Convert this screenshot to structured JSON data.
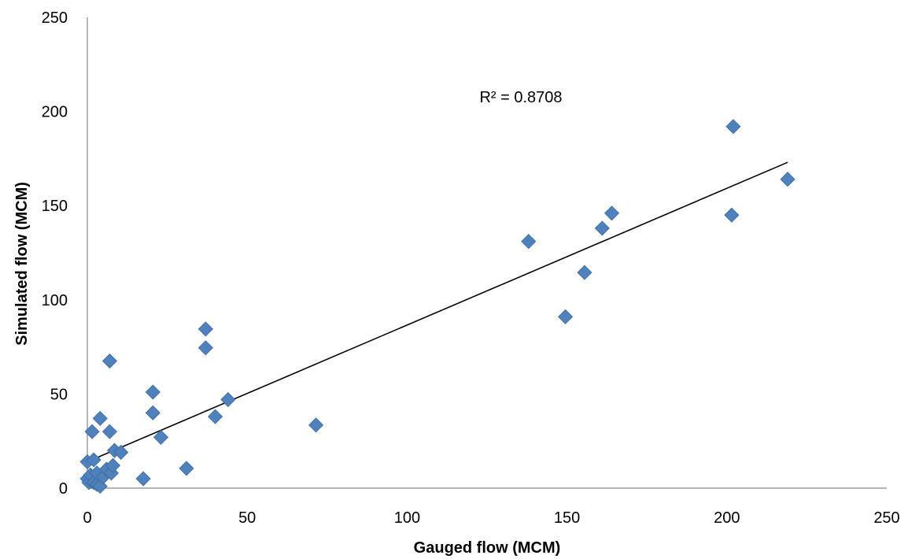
{
  "chart_data": {
    "type": "scatter",
    "xlabel": "Gauged flow (MCM)",
    "ylabel": "Simulated flow (MCM)",
    "xlim": [
      0,
      250
    ],
    "ylim": [
      0,
      250
    ],
    "x_ticks": [
      "0",
      "50",
      "100",
      "150",
      "200",
      "250"
    ],
    "y_ticks": [
      "0",
      "50",
      "100",
      "150",
      "200",
      "250"
    ],
    "grid": false,
    "legend": "none",
    "marker": "diamond",
    "marker_color": "#4F81BD",
    "trendline_color": "#000000",
    "annotation": "R² = 0.8708",
    "trendline": {
      "type": "linear",
      "x": [
        0,
        219
      ],
      "y": [
        14,
        173
      ]
    },
    "points": [
      {
        "x": 0,
        "y": 5
      },
      {
        "x": 0,
        "y": 14
      },
      {
        "x": 0.5,
        "y": 3
      },
      {
        "x": 1,
        "y": 7
      },
      {
        "x": 1.5,
        "y": 30
      },
      {
        "x": 2,
        "y": 15
      },
      {
        "x": 2,
        "y": 3
      },
      {
        "x": 3,
        "y": 2
      },
      {
        "x": 3,
        "y": 8
      },
      {
        "x": 4,
        "y": 1
      },
      {
        "x": 4,
        "y": 37
      },
      {
        "x": 5,
        "y": 6
      },
      {
        "x": 6,
        "y": 10
      },
      {
        "x": 7,
        "y": 67.5
      },
      {
        "x": 7,
        "y": 30
      },
      {
        "x": 7.5,
        "y": 8
      },
      {
        "x": 8,
        "y": 12
      },
      {
        "x": 8.5,
        "y": 20
      },
      {
        "x": 10.5,
        "y": 19
      },
      {
        "x": 17.5,
        "y": 5
      },
      {
        "x": 20.5,
        "y": 51
      },
      {
        "x": 20.5,
        "y": 40
      },
      {
        "x": 23,
        "y": 27
      },
      {
        "x": 31,
        "y": 10.5
      },
      {
        "x": 37,
        "y": 84.5
      },
      {
        "x": 37,
        "y": 74.5
      },
      {
        "x": 40,
        "y": 38
      },
      {
        "x": 44,
        "y": 47
      },
      {
        "x": 71.5,
        "y": 33.5
      },
      {
        "x": 138,
        "y": 131
      },
      {
        "x": 149.5,
        "y": 91
      },
      {
        "x": 155.5,
        "y": 114.5
      },
      {
        "x": 161,
        "y": 138
      },
      {
        "x": 164,
        "y": 146
      },
      {
        "x": 201.5,
        "y": 145
      },
      {
        "x": 202,
        "y": 192
      },
      {
        "x": 219,
        "y": 164
      }
    ]
  }
}
